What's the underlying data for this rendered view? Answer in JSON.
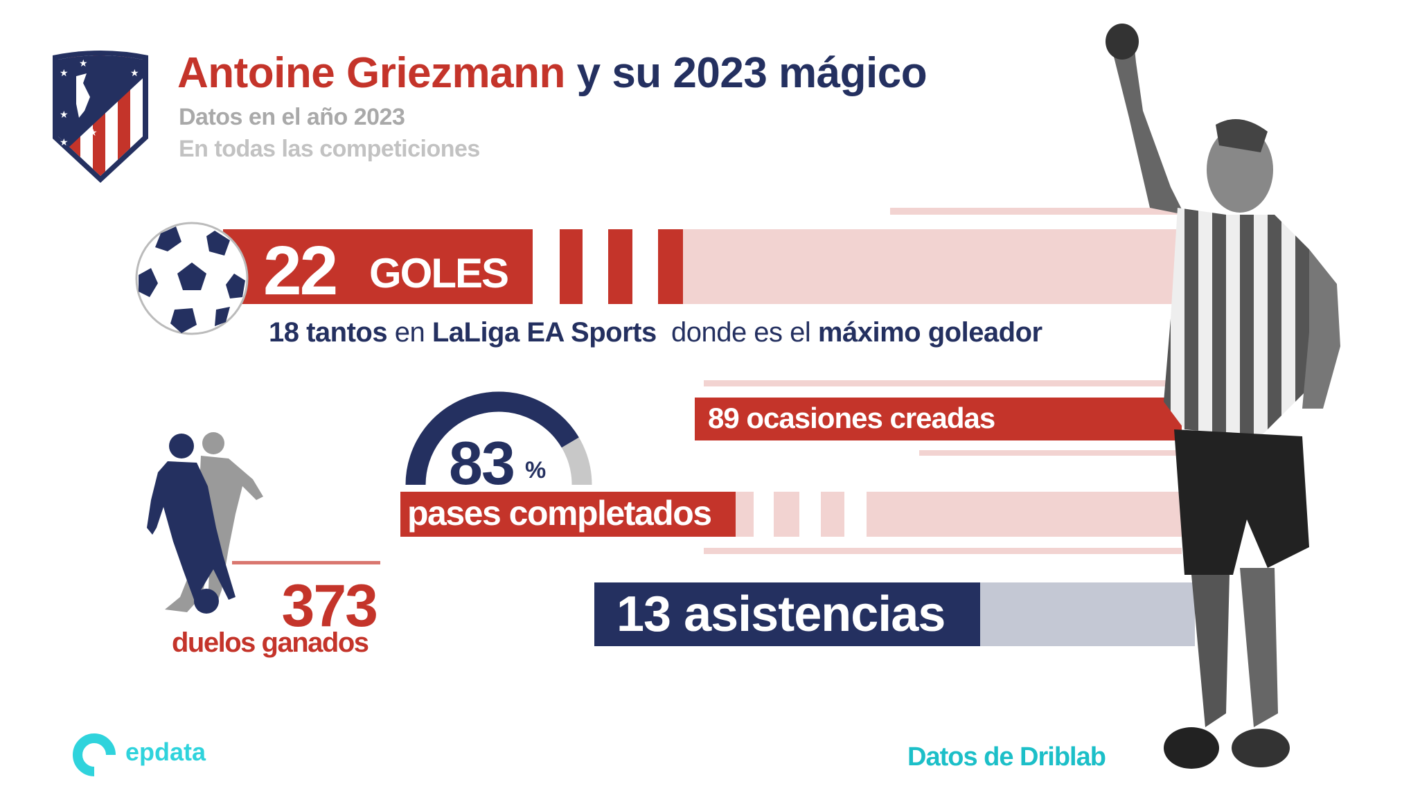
{
  "header": {
    "title_name": "Antoine Griezmann",
    "title_rest": " y su 2023 mágico",
    "subtitle_1": "Datos en el año 2023",
    "subtitle_2": "En todas las competiciones"
  },
  "stats": {
    "goals": {
      "value": "22",
      "label": "GOLES",
      "detail_1": "18 tantos",
      "detail_2": " en ",
      "detail_3": "LaLiga EA Sports",
      "detail_4": "  donde es el ",
      "detail_5": "máximo goleador"
    },
    "chances": {
      "label": "89 ocasiones creadas"
    },
    "passes": {
      "value": "83",
      "unit": "%",
      "label": "pases completados",
      "percent": 83
    },
    "assists": {
      "label": "13 asistencias"
    },
    "duels": {
      "value": "373",
      "label": "duelos ganados"
    }
  },
  "footer": {
    "brand": "epdata",
    "source": "Datos de Driblab"
  },
  "colors": {
    "red": "#c4342a",
    "navy": "#243060",
    "pink": "#f2d3d1",
    "teal": "#1cbfc8",
    "grey": "#c4c8d4"
  },
  "icons": [
    "atletico-madrid-crest",
    "soccer-ball-icon",
    "players-silhouette-icon",
    "epdata-logo",
    "player-photo"
  ]
}
